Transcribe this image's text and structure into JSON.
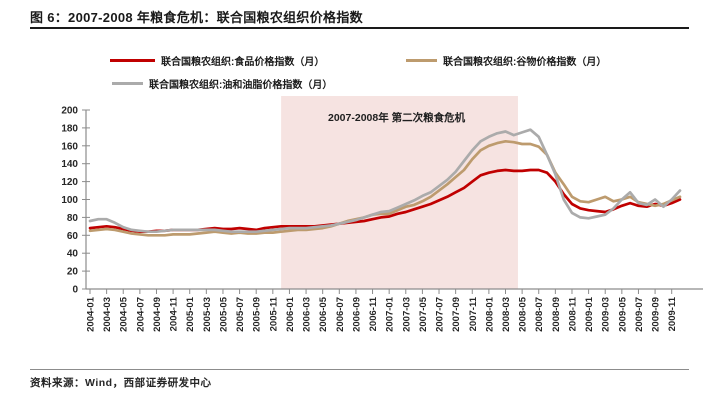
{
  "figure": {
    "title": "图 6：2007-2008 年粮食危机：联合国粮农组织价格指数",
    "source": "资料来源：Wind，西部证券研发中心"
  },
  "chart_data": {
    "type": "line",
    "title": "",
    "xlabel": "",
    "ylabel": "",
    "ylim": [
      0,
      200
    ],
    "y_ticks": [
      0,
      20,
      40,
      60,
      80,
      100,
      120,
      140,
      160,
      180,
      200
    ],
    "grid": false,
    "legend_position": "top",
    "x_tick_labels": [
      "2004-01",
      "2004-03",
      "2004-05",
      "2004-07",
      "2004-09",
      "2004-11",
      "2005-01",
      "2005-03",
      "2005-05",
      "2005-07",
      "2005-09",
      "2005-11",
      "2006-01",
      "2006-03",
      "2006-05",
      "2006-07",
      "2006-09",
      "2006-11",
      "2007-01",
      "2007-03",
      "2007-05",
      "2007-07",
      "2007-09",
      "2007-11",
      "2008-01",
      "2008-03",
      "2008-05",
      "2008-07",
      "2008-09",
      "2008-11",
      "2009-01",
      "2009-03",
      "2009-05",
      "2009-07",
      "2009-09",
      "2009-11"
    ],
    "months_start": "2004-01",
    "months_end": "2009-12",
    "series": [
      {
        "key": "food",
        "name": "联合国粮农组织:食品价格指数（月）",
        "color": "#C00000",
        "values": [
          68,
          69,
          70,
          69,
          67,
          65,
          64,
          64,
          65,
          65,
          66,
          66,
          66,
          66,
          67,
          68,
          67,
          67,
          68,
          67,
          66,
          68,
          69,
          70,
          70,
          70,
          70,
          70,
          71,
          72,
          73,
          74,
          75,
          76,
          78,
          80,
          81,
          84,
          86,
          89,
          92,
          95,
          99,
          103,
          108,
          113,
          120,
          127,
          130,
          132,
          133,
          132,
          132,
          133,
          133,
          130,
          120,
          106,
          95,
          90,
          88,
          87,
          86,
          89,
          93,
          96,
          93,
          92,
          95,
          93,
          96,
          100
        ]
      },
      {
        "key": "cereals",
        "name": "联合国粮农组织:谷物价格指数（月）",
        "color": "#BD9B6E",
        "values": [
          65,
          66,
          67,
          66,
          64,
          62,
          61,
          60,
          60,
          60,
          61,
          61,
          61,
          62,
          63,
          64,
          63,
          62,
          63,
          62,
          62,
          63,
          63,
          64,
          65,
          66,
          66,
          67,
          68,
          70,
          73,
          76,
          78,
          80,
          83,
          84,
          84,
          88,
          92,
          94,
          98,
          103,
          110,
          117,
          125,
          133,
          145,
          155,
          160,
          163,
          165,
          164,
          162,
          162,
          159,
          150,
          130,
          117,
          103,
          98,
          97,
          100,
          103,
          98,
          100,
          103,
          97,
          95,
          93,
          95,
          99,
          103
        ]
      },
      {
        "key": "oils",
        "name": "联合国粮农组织:油和油脂价格指数（月）",
        "color": "#ABABAB",
        "values": [
          76,
          78,
          78,
          74,
          69,
          66,
          65,
          64,
          64,
          65,
          66,
          66,
          66,
          66,
          66,
          66,
          65,
          64,
          64,
          64,
          64,
          65,
          66,
          67,
          68,
          68,
          68,
          69,
          70,
          71,
          73,
          75,
          77,
          80,
          83,
          86,
          87,
          91,
          95,
          99,
          104,
          108,
          115,
          122,
          131,
          143,
          155,
          165,
          170,
          174,
          176,
          172,
          175,
          178,
          170,
          150,
          128,
          100,
          85,
          80,
          79,
          81,
          83,
          90,
          100,
          108,
          96,
          94,
          100,
          92,
          100,
          110
        ]
      }
    ],
    "shaded_region": {
      "label": "2007-2008年  第二次粮食危机",
      "from_month": "2005-12",
      "to_month": "2008-05",
      "start_month_index": 23,
      "end_month_index": 51.5,
      "color": "#F6E3E1"
    },
    "annotation": {
      "text": "2007-2008年  第二次粮食危机"
    },
    "axis_color": "#8c8c8c",
    "tick_label_color": "#262626"
  }
}
